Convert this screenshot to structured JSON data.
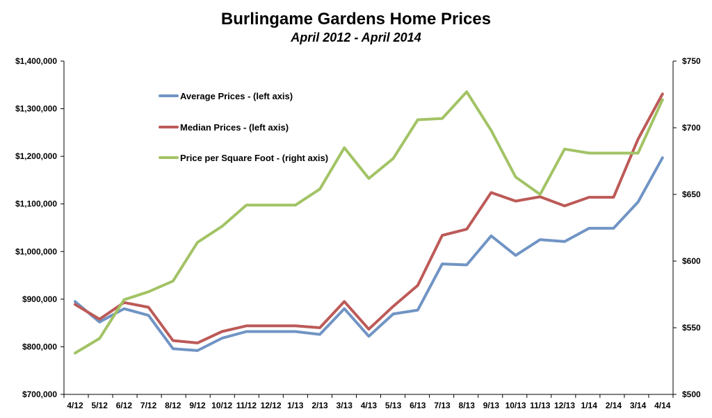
{
  "chart_data": {
    "type": "line",
    "title": "Burlingame Gardens Home Prices",
    "subtitle": "April 2012 - April 2014",
    "categories": [
      "4/12",
      "5/12",
      "6/12",
      "7/12",
      "8/12",
      "9/12",
      "10/12",
      "11/12",
      "12/12",
      "1/13",
      "2/13",
      "3/13",
      "4/13",
      "5/13",
      "6/13",
      "7/13",
      "8/13",
      "9/13",
      "10/13",
      "11/13",
      "12/13",
      "1/14",
      "2/14",
      "3/14",
      "4/14"
    ],
    "left_axis": {
      "ylim": [
        700000,
        1400000
      ],
      "ticks": [
        700000,
        800000,
        900000,
        1000000,
        1100000,
        1200000,
        1300000,
        1400000
      ],
      "tick_labels": [
        "$700,000",
        "$800,000",
        "$900,000",
        "$1,000,000",
        "$1,100,000",
        "$1,200,000",
        "$1,300,000",
        "$1,400,000"
      ]
    },
    "right_axis": {
      "ylim": [
        500,
        750
      ],
      "ticks": [
        500,
        550,
        600,
        650,
        700,
        750
      ],
      "tick_labels": [
        "$500",
        "$550",
        "$600",
        "$650",
        "$700",
        "$750"
      ]
    },
    "grid": false,
    "legend_position": "top-left (inside plot)",
    "series": [
      {
        "name": "Average Prices - (left axis)",
        "axis": "left",
        "color": "#7094c4",
        "values": [
          895000,
          852000,
          880000,
          866000,
          796000,
          792000,
          818000,
          832000,
          832000,
          832000,
          826000,
          880000,
          822000,
          869000,
          877000,
          974000,
          972000,
          1033000,
          992000,
          1025000,
          1021000,
          1049000,
          1049000,
          1104000,
          1197000
        ]
      },
      {
        "name": "Median Prices - (left axis)",
        "axis": "left",
        "color": "#bc5a58",
        "values": [
          889000,
          858000,
          893000,
          883000,
          813000,
          808000,
          832000,
          844000,
          844000,
          844000,
          840000,
          895000,
          837000,
          885000,
          929000,
          1034000,
          1047000,
          1124000,
          1106000,
          1115000,
          1096000,
          1114000,
          1114000,
          1236000,
          1331000
        ]
      },
      {
        "name": "Price per Square Foot - (right axis)",
        "axis": "right",
        "color": "#a2c365",
        "values": [
          531,
          542,
          571,
          577,
          585,
          614,
          626,
          642,
          642,
          642,
          654,
          685,
          662,
          677,
          706,
          707,
          727,
          698,
          663,
          650,
          684,
          681,
          681,
          681,
          721
        ]
      }
    ]
  }
}
